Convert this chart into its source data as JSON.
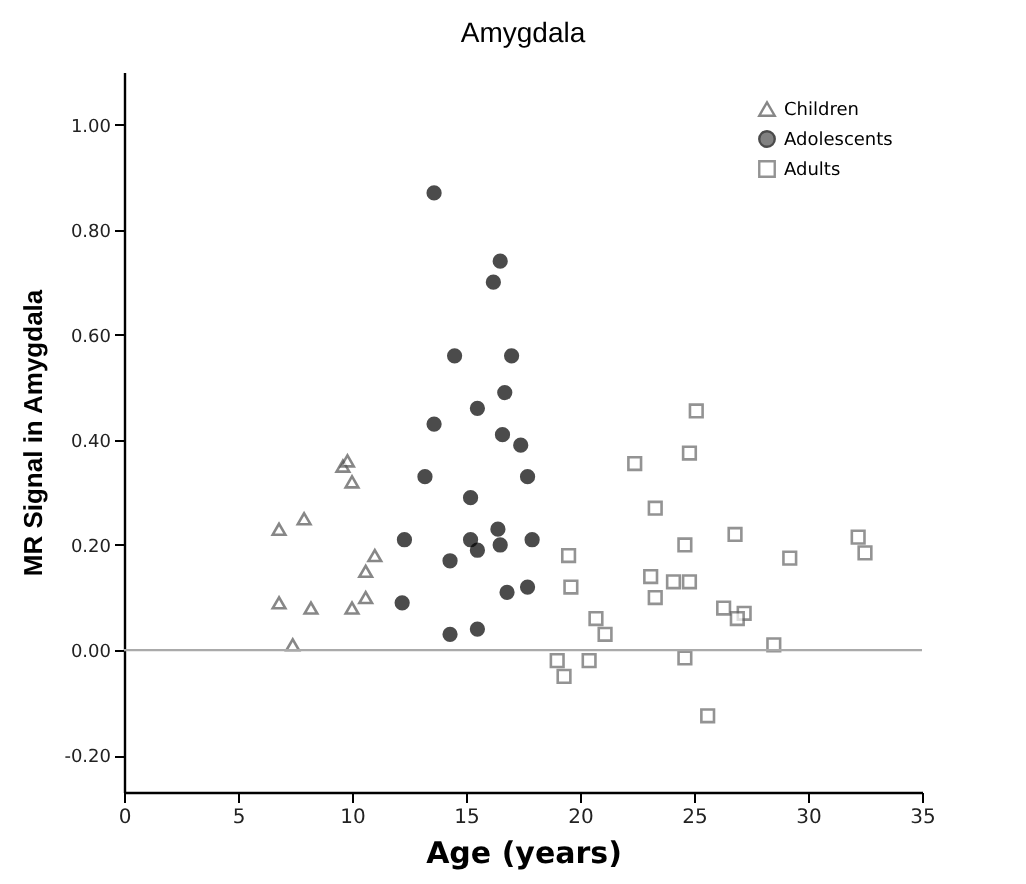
{
  "chart_data": {
    "type": "scatter",
    "title": "Amygdala",
    "xlabel": "Age (years)",
    "ylabel": "MR Signal in Amygdala",
    "xlim": [
      0,
      35
    ],
    "xticks": [
      0,
      5,
      10,
      15,
      20,
      25,
      30,
      35
    ],
    "ylim": [
      -0.27,
      1.1
    ],
    "yticks": [
      {
        "value": -0.2,
        "label": "-0.20"
      },
      {
        "value": 0,
        "label": "0.00"
      },
      {
        "value": 0.2,
        "label": "0.20"
      },
      {
        "value": 0.4,
        "label": "0.40"
      },
      {
        "value": 0.6,
        "label": "0.60"
      },
      {
        "value": 0.8,
        "label": "0.80"
      },
      {
        "value": 1,
        "label": "1.00"
      }
    ],
    "grid": false,
    "legend": "top right",
    "ref_lines": [
      {
        "axis": "y",
        "value": 0,
        "color": "#aaaaaa"
      }
    ],
    "series": [
      {
        "name": "Children",
        "color": "#555555",
        "marker": "triangle",
        "x": [
          6.8,
          7.9,
          6.8,
          8.2,
          7.4,
          9.6,
          9.8,
          10.0,
          11.0,
          10.6,
          10.0,
          10.6
        ],
        "values": [
          0.23,
          0.25,
          0.09,
          0.08,
          0.01,
          0.35,
          0.36,
          0.32,
          0.18,
          0.15,
          0.08,
          0.1
        ]
      },
      {
        "name": "Adolescents",
        "color": "#000000",
        "marker": "circle",
        "x": [
          13.6,
          16.5,
          16.2,
          14.5,
          17.0,
          15.5,
          16.7,
          13.6,
          16.6,
          13.2,
          15.2,
          12.3,
          14.3,
          15.2,
          15.5,
          16.4,
          16.5,
          12.2,
          14.3,
          15.5,
          16.8,
          17.4,
          17.7,
          17.9,
          17.7
        ],
        "values": [
          0.87,
          0.74,
          0.7,
          0.56,
          0.56,
          0.46,
          0.49,
          0.43,
          0.41,
          0.33,
          0.29,
          0.21,
          0.17,
          0.21,
          0.19,
          0.23,
          0.2,
          0.09,
          0.03,
          0.04,
          0.11,
          0.39,
          0.33,
          0.21,
          0.12
        ]
      },
      {
        "name": "Adults",
        "color": "#666666",
        "marker": "square",
        "x": [
          25.1,
          24.8,
          22.4,
          23.3,
          19.5,
          24.6,
          26.8,
          29.2,
          32.2,
          32.5,
          19.6,
          23.1,
          24.1,
          24.8,
          23.3,
          26.3,
          27.2,
          26.9,
          20.7,
          21.1,
          28.5,
          19.0,
          20.4,
          19.3,
          24.6,
          25.6
        ],
        "values": [
          0.455,
          0.375,
          0.355,
          0.27,
          0.18,
          0.2,
          0.22,
          0.175,
          0.215,
          0.185,
          0.12,
          0.14,
          0.13,
          0.13,
          0.1,
          0.08,
          0.07,
          0.06,
          0.06,
          0.03,
          0.01,
          -0.02,
          -0.02,
          -0.05,
          -0.015,
          -0.125
        ]
      }
    ]
  }
}
